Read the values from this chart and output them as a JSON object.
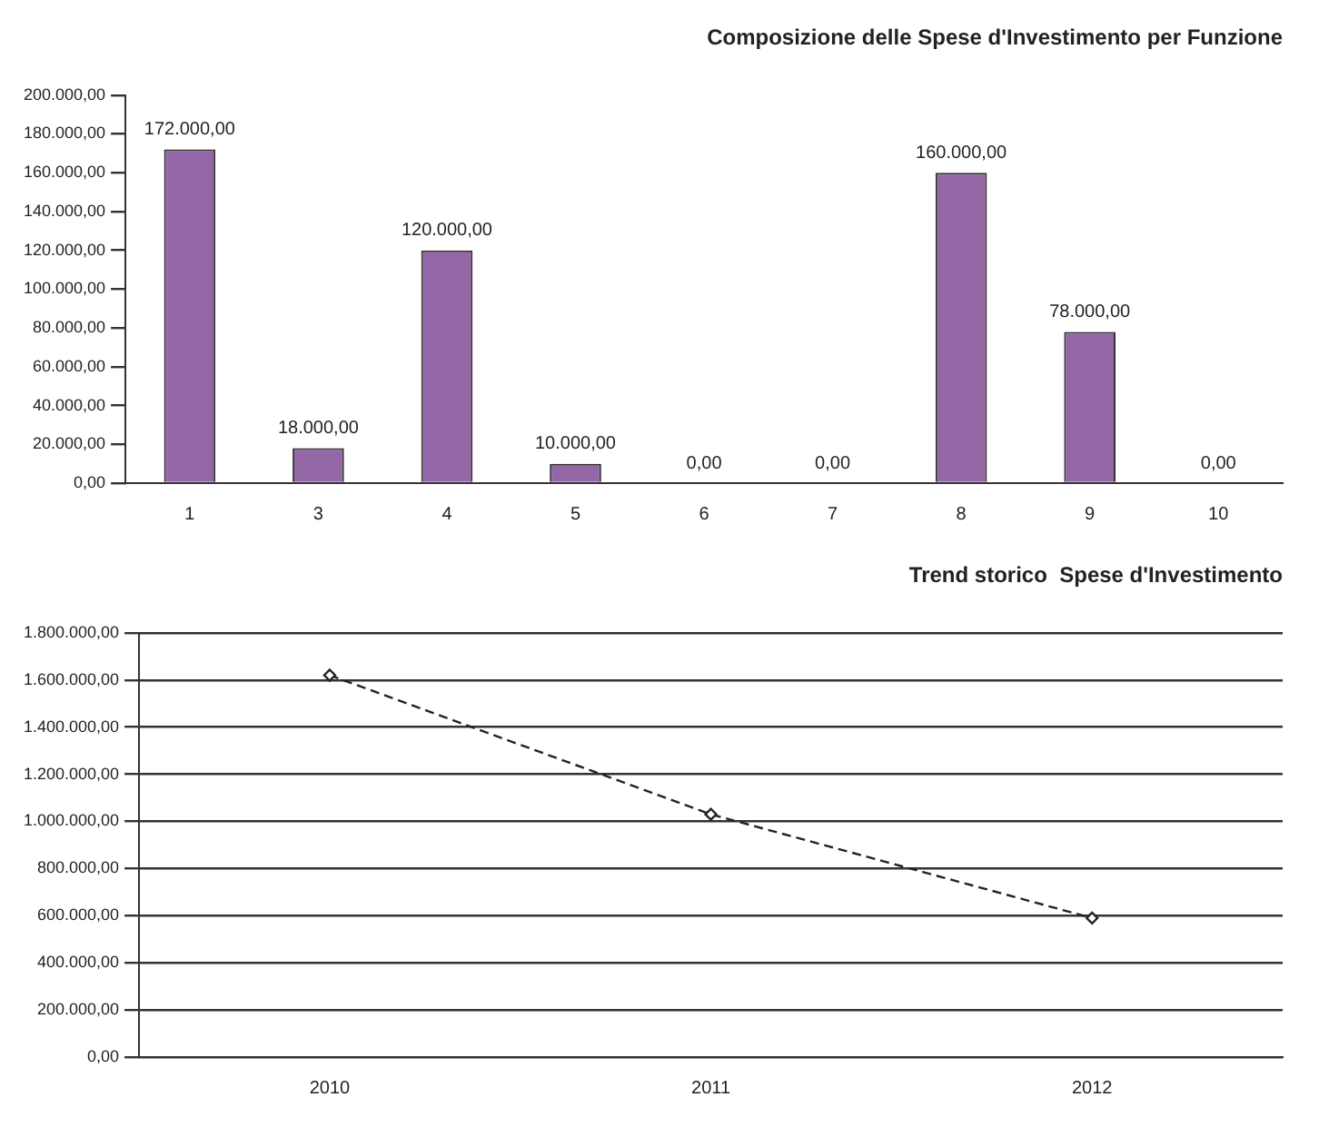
{
  "chart_data": [
    {
      "type": "bar",
      "title": "Composizione delle Spese d'Investimento per Funzione",
      "categories": [
        "1",
        "3",
        "4",
        "5",
        "6",
        "7",
        "8",
        "9",
        "10"
      ],
      "values": [
        172000,
        18000,
        120000,
        10000,
        0,
        0,
        160000,
        78000,
        0
      ],
      "value_labels": [
        "172.000,00",
        "18.000,00",
        "120.000,00",
        "10.000,00",
        "0,00",
        "0,00",
        "160.000,00",
        "78.000,00",
        "0,00"
      ],
      "color": "#9467a6",
      "ylim": [
        0,
        200000
      ],
      "yticks": [
        {
          "value": 0,
          "label": "0,00"
        },
        {
          "value": 20000,
          "label": "20.000,00"
        },
        {
          "value": 40000,
          "label": "40.000,00"
        },
        {
          "value": 60000,
          "label": "60.000,00"
        },
        {
          "value": 80000,
          "label": "80.000,00"
        },
        {
          "value": 100000,
          "label": "100.000,00"
        },
        {
          "value": 120000,
          "label": "120.000,00"
        },
        {
          "value": 140000,
          "label": "140.000,00"
        },
        {
          "value": 160000,
          "label": "160.000,00"
        },
        {
          "value": 180000,
          "label": "180.000,00"
        },
        {
          "value": 200000,
          "label": "200.000,00"
        }
      ]
    },
    {
      "type": "line",
      "title": "Trend storico  Spese d'Investimento",
      "categories": [
        "2010",
        "2011",
        "2012"
      ],
      "values": [
        1620000,
        1030000,
        590000
      ],
      "color": "#222222",
      "ylim": [
        0,
        1800000
      ],
      "yticks": [
        {
          "value": 0,
          "label": "0,00"
        },
        {
          "value": 200000,
          "label": "200.000,00"
        },
        {
          "value": 400000,
          "label": "400.000,00"
        },
        {
          "value": 600000,
          "label": "600.000,00"
        },
        {
          "value": 800000,
          "label": "800.000,00"
        },
        {
          "value": 1000000,
          "label": "1.000.000,00"
        },
        {
          "value": 1200000,
          "label": "1.200.000,00"
        },
        {
          "value": 1400000,
          "label": "1.400.000,00"
        },
        {
          "value": 1600000,
          "label": "1.600.000,00"
        },
        {
          "value": 1800000,
          "label": "1.800.000,00"
        }
      ],
      "grid": "y",
      "marker": "diamond",
      "line_style": "dashed"
    }
  ]
}
